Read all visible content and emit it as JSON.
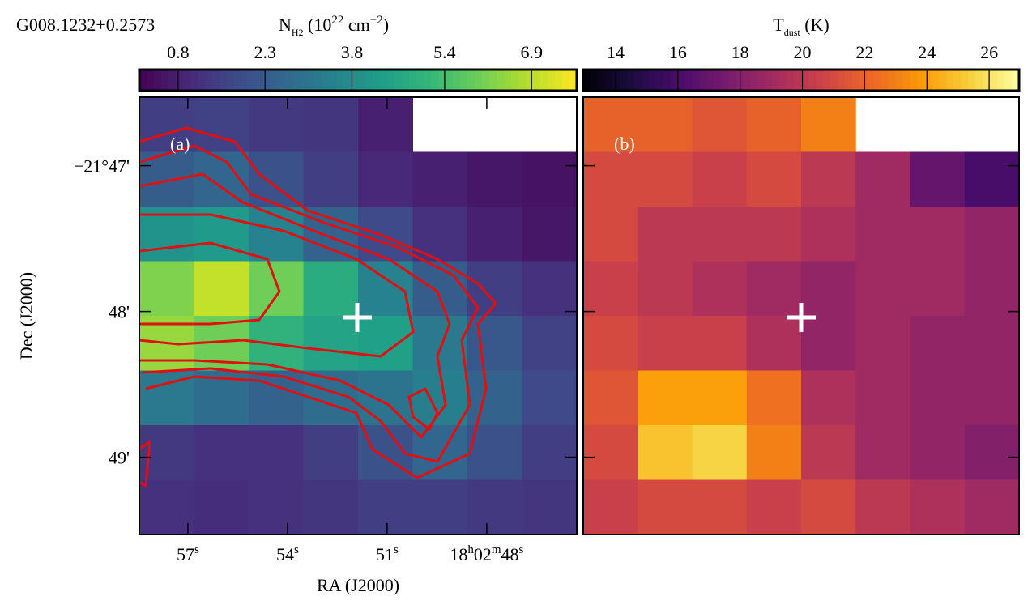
{
  "chart_data": [
    {
      "type": "heatmap",
      "title": "G008.1232+0.2573",
      "panel_label": "(a)",
      "colormap": "viridis",
      "colorbar": {
        "label": [
          {
            "text": "N"
          },
          {
            "sub": "H2"
          },
          {
            "text": " (10"
          },
          {
            "sup": "22"
          },
          {
            "text": " cm"
          },
          {
            "sup": "−2"
          },
          {
            "text": ")"
          }
        ],
        "clim": [
          0.13,
          7.68
        ],
        "ticks": [
          0.8,
          2.3,
          3.8,
          5.4,
          6.9
        ]
      },
      "xlabel": "RA (J2000)",
      "ylabel": "Dec (J2000)",
      "xlim": [
        58.46,
        45.29
      ],
      "xticks": [
        {
          "value": 57,
          "label": [
            {
              "text": "57"
            },
            {
              "sup": "s"
            }
          ]
        },
        {
          "value": 54,
          "label": [
            {
              "text": "54"
            },
            {
              "sup": "s"
            }
          ]
        },
        {
          "value": 51,
          "label": [
            {
              "text": "51"
            },
            {
              "sup": "s"
            }
          ]
        },
        {
          "value": 48,
          "label": [
            {
              "text": "18"
            },
            {
              "sup": "h"
            },
            {
              "text": "02"
            },
            {
              "sup": "m"
            },
            {
              "text": "48"
            },
            {
              "sup": "s"
            }
          ]
        }
      ],
      "ylim": [
        46.53,
        49.53
      ],
      "yticks": [
        {
          "value": 47,
          "label": "−21°47'"
        },
        {
          "value": 48,
          "label": "48'"
        },
        {
          "value": 49,
          "label": "49'"
        }
      ],
      "values": [
        [
          1.5,
          1.6,
          1.4,
          1.3,
          0.8,
          null,
          null,
          null
        ],
        [
          2.3,
          2.6,
          2.0,
          1.5,
          1.0,
          0.8,
          0.6,
          0.5
        ],
        [
          4.0,
          4.2,
          3.5,
          2.5,
          1.8,
          1.2,
          0.8,
          0.6
        ],
        [
          6.2,
          7.0,
          6.0,
          4.8,
          3.5,
          2.3,
          1.5,
          1.2
        ],
        [
          6.5,
          6.0,
          5.0,
          4.5,
          4.4,
          3.2,
          2.2,
          1.6
        ],
        [
          3.2,
          2.8,
          2.5,
          2.8,
          3.0,
          3.4,
          2.5,
          1.8
        ],
        [
          1.4,
          1.2,
          1.2,
          1.5,
          2.0,
          2.6,
          2.0,
          1.5
        ],
        [
          1.2,
          1.1,
          1.2,
          1.3,
          1.5,
          1.5,
          1.4,
          1.3
        ]
      ]
    },
    {
      "type": "heatmap",
      "panel_label": "(b)",
      "colormap": "inferno",
      "colorbar": {
        "label": [
          {
            "text": "T"
          },
          {
            "sub": "dust"
          },
          {
            "text": " (K)"
          }
        ],
        "clim": [
          12.96,
          26.96
        ],
        "ticks": [
          14,
          16,
          18,
          20,
          22,
          24,
          26
        ]
      },
      "values": [
        [
          22,
          22,
          21.5,
          22,
          23,
          null,
          null,
          null
        ],
        [
          21,
          21,
          20.5,
          21,
          20,
          19,
          17,
          16
        ],
        [
          21,
          20,
          20,
          20,
          19.5,
          19,
          19,
          18.5
        ],
        [
          20.5,
          20,
          19.5,
          19,
          18.5,
          19,
          19,
          18.5
        ],
        [
          21,
          20.5,
          20.5,
          19.5,
          18.5,
          19,
          18.5,
          18.5
        ],
        [
          21.5,
          24,
          24,
          22.5,
          19.5,
          19,
          18.5,
          18.5
        ],
        [
          21,
          25,
          25.5,
          23,
          20,
          19,
          18.5,
          18
        ],
        [
          20.5,
          21,
          21,
          20.5,
          21,
          20,
          19.5,
          19
        ]
      ]
    }
  ]
}
